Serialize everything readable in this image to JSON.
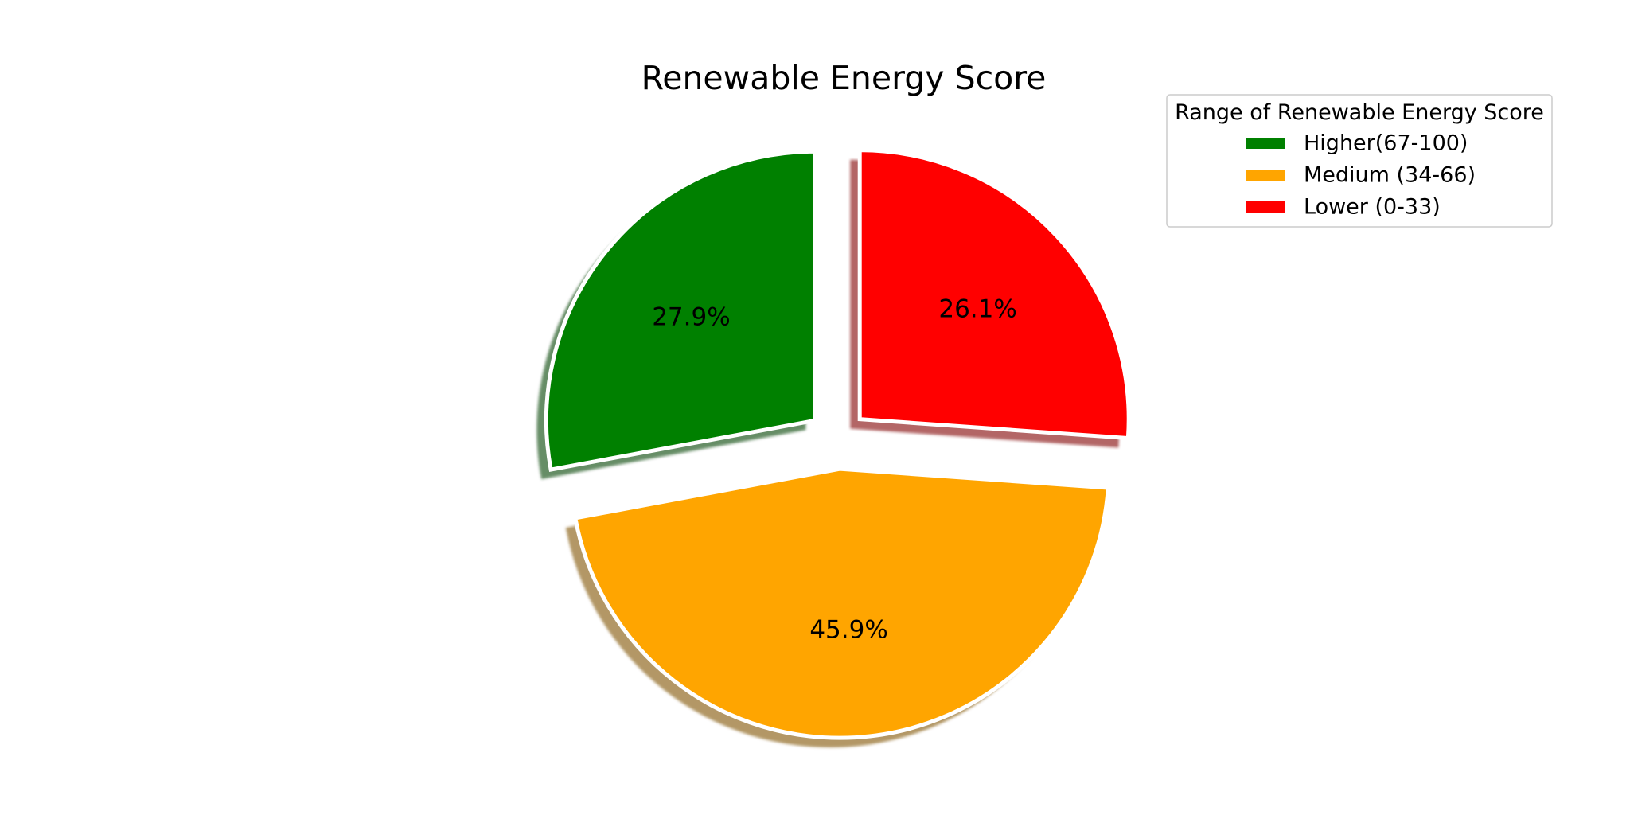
{
  "chart_data": {
    "type": "pie",
    "title": "Renewable Energy Score",
    "start_angle_deg": 90,
    "counterclock": true,
    "shadow": true,
    "slices": [
      {
        "label": "Higher(67-100)",
        "value": 27.9,
        "pct_label": "27.9%",
        "color": "#008000",
        "explode": true
      },
      {
        "label": "Medium (34-66)",
        "value": 45.9,
        "pct_label": "45.9%",
        "color": "#FFA500",
        "explode": true
      },
      {
        "label": "Lower (0-33)",
        "value": 26.1,
        "pct_label": "26.1%",
        "color": "#FF0000",
        "explode": true
      }
    ],
    "legend": {
      "title": "Range of Renewable Energy Score",
      "placement": "top-right"
    }
  }
}
